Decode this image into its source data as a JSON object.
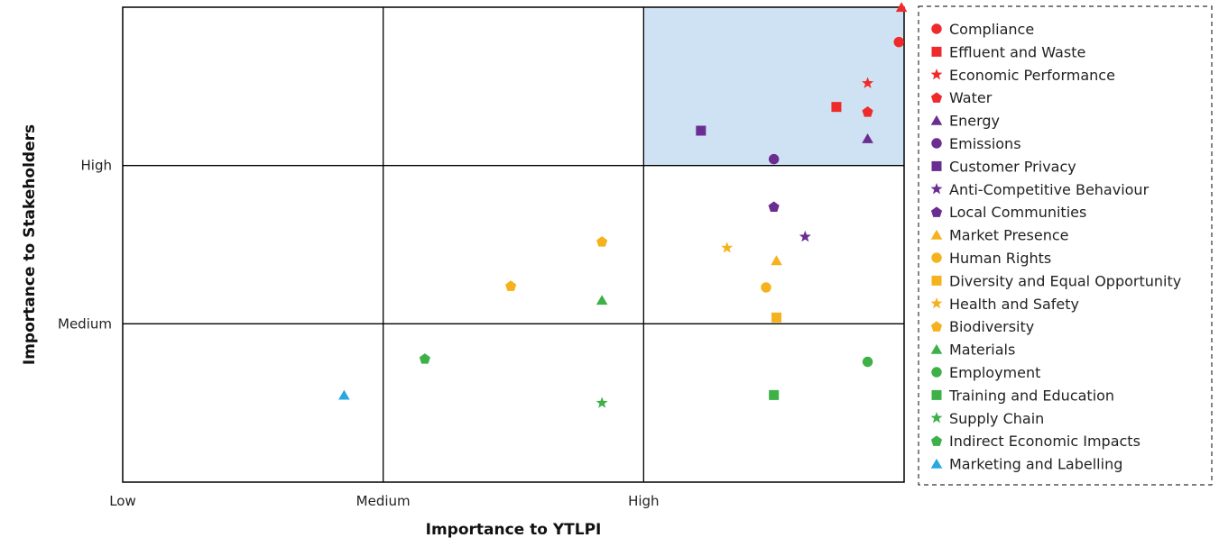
{
  "chart_data": {
    "type": "scatter",
    "xlabel": "Importance to YTLPI",
    "ylabel": "Importance to Stakeholders",
    "xlim": [
      0,
      3
    ],
    "ylim": [
      0,
      3
    ],
    "x_ticks": [
      {
        "value": 0,
        "label": "Low"
      },
      {
        "value": 1,
        "label": "Medium"
      },
      {
        "value": 2,
        "label": "High"
      }
    ],
    "y_ticks": [
      {
        "value": 1,
        "label": "Medium"
      },
      {
        "value": 2,
        "label": "High"
      }
    ],
    "grid": true,
    "highlight_quadrant": {
      "x": [
        2,
        3
      ],
      "y": [
        2,
        3
      ],
      "color": "#cfe2f3"
    },
    "legend_position": "right",
    "colors": {
      "red": "#ee2a2a",
      "purple": "#6a2d91",
      "yellow": "#f5b21c",
      "green": "#3db048",
      "blue": "#29a8e0"
    },
    "series": [
      {
        "name": "Compliance",
        "marker": "circle",
        "color": "#ee2a2a",
        "x": 2.98,
        "y": 2.78
      },
      {
        "name": "Effluent and Waste",
        "marker": "square",
        "color": "#ee2a2a",
        "x": 2.74,
        "y": 2.37
      },
      {
        "name": "Economic Performance",
        "marker": "star",
        "color": "#ee2a2a",
        "x": 2.86,
        "y": 2.52
      },
      {
        "name": "Water",
        "marker": "pentagon",
        "color": "#ee2a2a",
        "x": 2.86,
        "y": 2.34
      },
      {
        "name": "Energy",
        "marker": "triangle",
        "color": "#6a2d91",
        "x": 2.86,
        "y": 2.17
      },
      {
        "name": "Emissions",
        "marker": "circle",
        "color": "#6a2d91",
        "x": 2.5,
        "y": 2.04
      },
      {
        "name": "Customer Privacy",
        "marker": "square",
        "color": "#6a2d91",
        "x": 2.22,
        "y": 2.22
      },
      {
        "name": "Anti-Competitive Behaviour",
        "marker": "star",
        "color": "#6a2d91",
        "x": 2.62,
        "y": 1.55
      },
      {
        "name": "Local Communities",
        "marker": "pentagon",
        "color": "#6a2d91",
        "x": 2.5,
        "y": 1.74
      },
      {
        "name": "Market Presence",
        "marker": "triangle",
        "color": "#f5b21c",
        "x": 2.51,
        "y": 1.4
      },
      {
        "name": "Human Rights",
        "marker": "circle",
        "color": "#f5b21c",
        "x": 2.47,
        "y": 1.23
      },
      {
        "name": "Diversity and Equal Opportunity",
        "marker": "square",
        "color": "#f5b21c",
        "x": 2.51,
        "y": 1.04
      },
      {
        "name": "Health and Safety",
        "marker": "star",
        "color": "#f5b21c",
        "x": 2.32,
        "y": 1.48
      },
      {
        "name": "Biodiversity",
        "marker": "pentagon",
        "color": "#f5b21c",
        "x": 1.84,
        "y": 1.52
      },
      {
        "name": "Biodiversity",
        "marker": "pentagon",
        "color": "#f5b21c",
        "x": 1.49,
        "y": 1.24
      },
      {
        "name": "Materials",
        "marker": "triangle",
        "color": "#3db048",
        "x": 1.84,
        "y": 1.15
      },
      {
        "name": "Employment",
        "marker": "circle",
        "color": "#3db048",
        "x": 2.86,
        "y": 0.76
      },
      {
        "name": "Training and Education",
        "marker": "square",
        "color": "#3db048",
        "x": 2.5,
        "y": 0.55
      },
      {
        "name": "Supply Chain",
        "marker": "star",
        "color": "#3db048",
        "x": 1.84,
        "y": 0.5
      },
      {
        "name": "Indirect Economic Impacts",
        "marker": "pentagon",
        "color": "#3db048",
        "x": 1.16,
        "y": 0.78
      },
      {
        "name": "Marketing and Labelling",
        "marker": "triangle",
        "color": "#29a8e0",
        "x": 0.85,
        "y": 0.55
      },
      {
        "name": "Energy",
        "marker": "triangle",
        "color": "#ee2a2a",
        "x": 2.99,
        "y": 3.0
      }
    ],
    "legend": [
      {
        "name": "Compliance",
        "marker": "circle",
        "color": "#ee2a2a"
      },
      {
        "name": "Effluent and Waste",
        "marker": "square",
        "color": "#ee2a2a"
      },
      {
        "name": "Economic Performance",
        "marker": "star",
        "color": "#ee2a2a"
      },
      {
        "name": "Water",
        "marker": "pentagon",
        "color": "#ee2a2a"
      },
      {
        "name": "Energy",
        "marker": "triangle",
        "color": "#6a2d91"
      },
      {
        "name": "Emissions",
        "marker": "circle",
        "color": "#6a2d91"
      },
      {
        "name": "Customer Privacy",
        "marker": "square",
        "color": "#6a2d91"
      },
      {
        "name": "Anti-Competitive Behaviour",
        "marker": "star",
        "color": "#6a2d91"
      },
      {
        "name": "Local Communities",
        "marker": "pentagon",
        "color": "#6a2d91"
      },
      {
        "name": "Market Presence",
        "marker": "triangle",
        "color": "#f5b21c"
      },
      {
        "name": "Human Rights",
        "marker": "circle",
        "color": "#f5b21c"
      },
      {
        "name": "Diversity and Equal Opportunity",
        "marker": "square",
        "color": "#f5b21c"
      },
      {
        "name": "Health and Safety",
        "marker": "star",
        "color": "#f5b21c"
      },
      {
        "name": "Biodiversity",
        "marker": "pentagon",
        "color": "#f5b21c"
      },
      {
        "name": "Materials",
        "marker": "triangle",
        "color": "#3db048"
      },
      {
        "name": "Employment",
        "marker": "circle",
        "color": "#3db048"
      },
      {
        "name": "Training and Education",
        "marker": "square",
        "color": "#3db048"
      },
      {
        "name": "Supply Chain",
        "marker": "star",
        "color": "#3db048"
      },
      {
        "name": "Indirect Economic Impacts",
        "marker": "pentagon",
        "color": "#3db048"
      },
      {
        "name": "Marketing and Labelling",
        "marker": "triangle",
        "color": "#29a8e0"
      }
    ]
  }
}
